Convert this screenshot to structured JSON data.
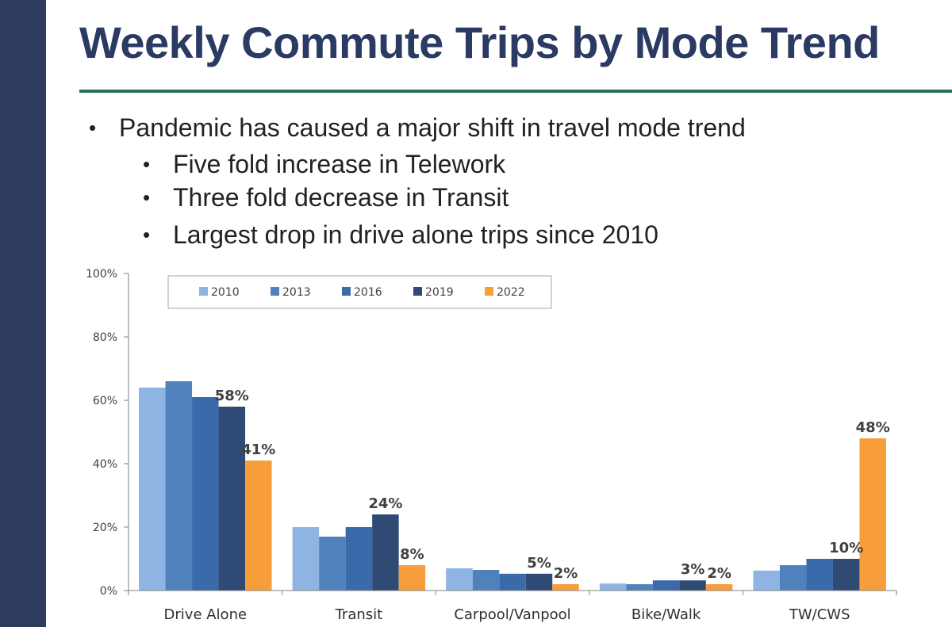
{
  "slide": {
    "title": "Weekly Commute Trips by Mode Trend",
    "bullets": [
      "Pandemic has caused a major shift in travel mode trend",
      "Five fold increase in Telework",
      "Three fold decrease in Transit",
      "Largest drop in drive alone trips since 2010"
    ]
  },
  "chart_data": {
    "type": "bar",
    "categories": [
      "Drive Alone",
      "Transit",
      "Carpool/Vanpool",
      "Bike/Walk",
      "TW/CWS"
    ],
    "series": [
      {
        "name": "2010",
        "color": "#8db4e2",
        "values": [
          64,
          20,
          7,
          2.2,
          6.3
        ]
      },
      {
        "name": "2013",
        "color": "#4f81bd",
        "values": [
          66,
          17,
          6.5,
          2,
          8
        ]
      },
      {
        "name": "2016",
        "color": "#3a6aaa",
        "values": [
          61,
          20,
          5.3,
          3.2,
          10
        ]
      },
      {
        "name": "2019",
        "color": "#2e4a75",
        "values": [
          58,
          24,
          5.3,
          3.2,
          10
        ]
      },
      {
        "name": "2022",
        "color": "#f79e3b",
        "values": [
          41,
          8,
          2,
          2,
          48
        ]
      }
    ],
    "data_labels": {
      "2019": [
        "58%",
        "24%",
        "5%",
        "3%",
        "10%"
      ],
      "2022": [
        "41%",
        "8%",
        "2%",
        "2%",
        "48%"
      ]
    },
    "yticks": [
      "0%",
      "20%",
      "40%",
      "60%",
      "80%",
      "100%"
    ],
    "ylim": [
      0,
      100
    ],
    "legend_position": "top",
    "grid": false
  }
}
